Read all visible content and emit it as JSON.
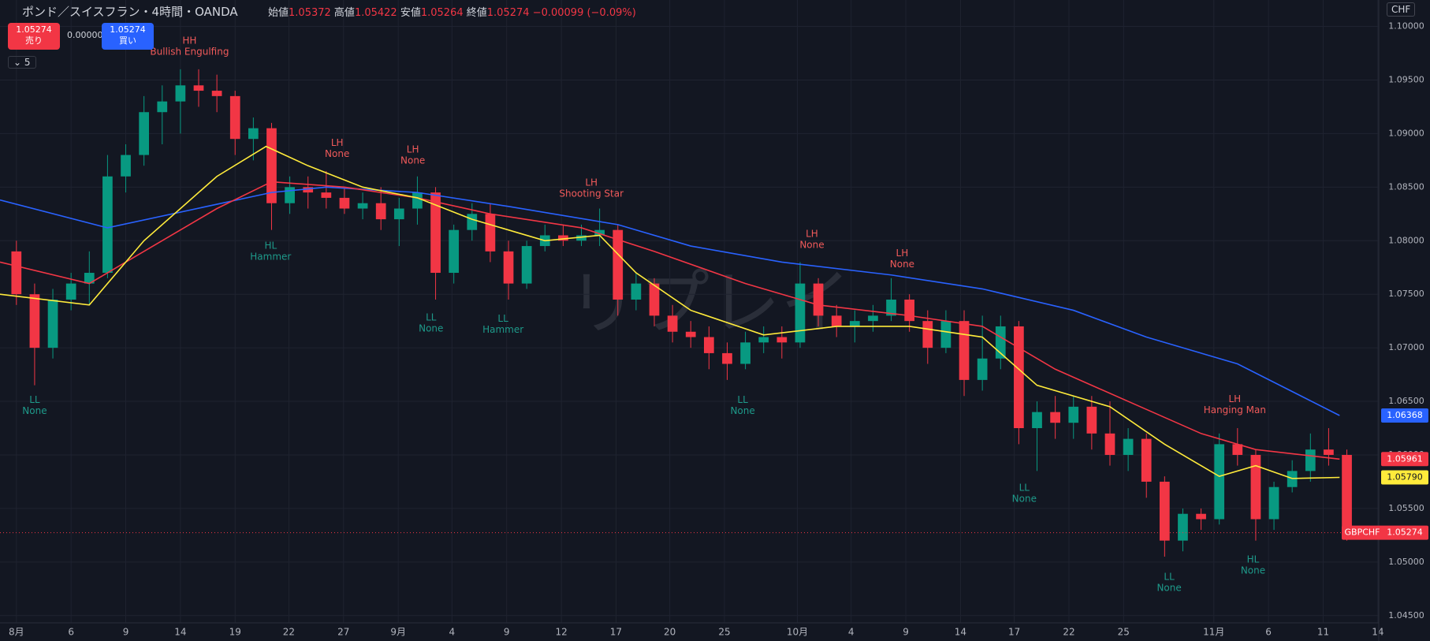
{
  "header": {
    "title": "ポンド／スイスフラン・4時間・OANDA",
    "open_label": "始値",
    "open": "1.05372",
    "high_label": "高値",
    "high": "1.05422",
    "low_label": "安値",
    "low": "1.05264",
    "close_label": "終値",
    "close": "1.05274",
    "change": "−0.00099 (−0.09%)",
    "sell_price": "1.05274",
    "sell": "売り",
    "spread": "0.00000",
    "buy_price": "1.05274",
    "buy": "買い",
    "indicators": "5",
    "currency": "CHF",
    "watermark": "リプレイ"
  },
  "chart_data": {
    "type": "candlestick",
    "symbol": "GBPCHF",
    "x": [
      0,
      1,
      2,
      3,
      4,
      5,
      6,
      7,
      8,
      9,
      10,
      11,
      12,
      13,
      14,
      15,
      16,
      17,
      18,
      19,
      20,
      21,
      22,
      23,
      24,
      25,
      26,
      27,
      28,
      29,
      30,
      31,
      32,
      33,
      34,
      35,
      36,
      37,
      38,
      39,
      40,
      41,
      42,
      43,
      44,
      45,
      46,
      47,
      48,
      49,
      50,
      51,
      52,
      53,
      54,
      55,
      56,
      57,
      58,
      59,
      60,
      61,
      62,
      63,
      64,
      65,
      66,
      67,
      68,
      69,
      70,
      71,
      72,
      73
    ],
    "open": [
      1.079,
      1.075,
      1.07,
      1.0745,
      1.076,
      1.077,
      1.086,
      1.088,
      1.092,
      1.093,
      1.0945,
      1.094,
      1.0935,
      1.0895,
      1.0905,
      1.0835,
      1.085,
      1.0845,
      1.084,
      1.083,
      1.0835,
      1.082,
      1.083,
      1.0845,
      1.077,
      1.081,
      1.0825,
      1.079,
      1.076,
      1.0795,
      1.0805,
      1.08,
      1.0805,
      1.081,
      1.0745,
      1.076,
      1.073,
      1.0715,
      1.071,
      1.0695,
      1.0685,
      1.0705,
      1.071,
      1.0705,
      1.076,
      1.073,
      1.072,
      1.0725,
      1.073,
      1.0745,
      1.0725,
      1.07,
      1.0725,
      1.067,
      1.069,
      1.072,
      1.0625,
      1.064,
      1.063,
      1.0645,
      1.062,
      1.06,
      1.0615,
      1.0575,
      1.052,
      1.0545,
      1.054,
      1.061,
      1.06,
      1.054,
      1.057,
      1.0585,
      1.0605,
      1.06
    ],
    "high": [
      1.08,
      1.076,
      1.0755,
      1.077,
      1.079,
      1.088,
      1.089,
      1.0935,
      1.0945,
      1.096,
      1.096,
      1.0955,
      1.094,
      1.0915,
      1.091,
      1.086,
      1.086,
      1.0865,
      1.085,
      1.0845,
      1.085,
      1.084,
      1.086,
      1.085,
      1.0815,
      1.0835,
      1.0835,
      1.08,
      1.08,
      1.0815,
      1.0815,
      1.0815,
      1.083,
      1.0815,
      1.077,
      1.0765,
      1.074,
      1.0725,
      1.072,
      1.0705,
      1.0715,
      1.072,
      1.072,
      1.078,
      1.0765,
      1.074,
      1.0735,
      1.074,
      1.0765,
      1.075,
      1.0735,
      1.0735,
      1.0735,
      1.073,
      1.073,
      1.0725,
      1.065,
      1.0655,
      1.0655,
      1.0655,
      1.065,
      1.0625,
      1.062,
      1.058,
      1.055,
      1.055,
      1.062,
      1.0625,
      1.0605,
      1.0575,
      1.0595,
      1.062,
      1.0625,
      1.0605
    ],
    "low": [
      1.074,
      1.0665,
      1.069,
      1.0735,
      1.074,
      1.0765,
      1.0845,
      1.087,
      1.089,
      1.09,
      1.0925,
      1.092,
      1.088,
      1.0875,
      1.081,
      1.0825,
      1.083,
      1.083,
      1.0825,
      1.082,
      1.081,
      1.0795,
      1.0815,
      1.0745,
      1.076,
      1.08,
      1.078,
      1.0745,
      1.0755,
      1.079,
      1.0795,
      1.0795,
      1.0795,
      1.073,
      1.0735,
      1.072,
      1.0705,
      1.07,
      1.068,
      1.067,
      1.068,
      1.0695,
      1.069,
      1.07,
      1.072,
      1.071,
      1.0705,
      1.0715,
      1.0725,
      1.0715,
      1.0685,
      1.0695,
      1.0655,
      1.066,
      1.068,
      1.061,
      1.0585,
      1.0615,
      1.0615,
      1.0605,
      1.059,
      1.0585,
      1.056,
      1.0505,
      1.051,
      1.053,
      1.0535,
      1.059,
      1.052,
      1.053,
      1.0565,
      1.0575,
      1.059,
      1.052
    ],
    "close": [
      1.075,
      1.07,
      1.0745,
      1.076,
      1.077,
      1.086,
      1.088,
      1.092,
      1.093,
      1.0945,
      1.094,
      1.0935,
      1.0895,
      1.0905,
      1.0835,
      1.085,
      1.0845,
      1.084,
      1.083,
      1.0835,
      1.082,
      1.083,
      1.0845,
      1.077,
      1.081,
      1.0825,
      1.079,
      1.076,
      1.0795,
      1.0805,
      1.08,
      1.0805,
      1.081,
      1.0745,
      1.076,
      1.073,
      1.0715,
      1.071,
      1.0695,
      1.0685,
      1.0705,
      1.071,
      1.0705,
      1.076,
      1.073,
      1.072,
      1.0725,
      1.073,
      1.0745,
      1.0725,
      1.07,
      1.0725,
      1.067,
      1.069,
      1.072,
      1.0625,
      1.064,
      1.063,
      1.0645,
      1.062,
      1.06,
      1.0615,
      1.0575,
      1.052,
      1.0545,
      1.054,
      1.061,
      1.06,
      1.054,
      1.057,
      1.0585,
      1.0605,
      1.06,
      1.05274
    ],
    "up_color": "#089981",
    "down_color": "#f23645",
    "last": {
      "value": 1.05274,
      "label": "1.05274"
    },
    "series": [
      {
        "color": "#2962ff",
        "x": [
          -0.9,
          5,
          14,
          17,
          22,
          27,
          33,
          37,
          42,
          48,
          53,
          58,
          62,
          67,
          72.6
        ],
        "values": [
          1.0838,
          1.0812,
          1.0845,
          1.085,
          1.0845,
          1.0832,
          1.0815,
          1.0795,
          1.078,
          1.0768,
          1.0755,
          1.0735,
          1.071,
          1.0685,
          1.06368
        ],
        "last": {
          "value": 1.06368,
          "label": "1.06368"
        }
      },
      {
        "color": "#f23645",
        "x": [
          -0.9,
          4,
          7,
          11,
          14,
          18,
          22,
          26,
          31,
          35,
          40,
          44,
          49,
          53,
          57,
          61,
          65,
          68,
          72.6
        ],
        "values": [
          1.078,
          1.076,
          1.079,
          1.083,
          1.0855,
          1.085,
          1.084,
          1.0825,
          1.0812,
          1.079,
          1.076,
          1.074,
          1.073,
          1.072,
          1.068,
          1.065,
          1.062,
          1.0605,
          1.05961
        ],
        "last": {
          "value": 1.05961,
          "label": "1.05961"
        }
      },
      {
        "color": "#ffeb3b",
        "x": [
          -0.9,
          4,
          7,
          11,
          13.7,
          16,
          19,
          22,
          25,
          29,
          32,
          34,
          37,
          41,
          45,
          49,
          53,
          56,
          60,
          63,
          66,
          68,
          70,
          72.6
        ],
        "values": [
          1.075,
          1.074,
          1.08,
          1.086,
          1.0888,
          1.087,
          1.085,
          1.084,
          1.082,
          1.08,
          1.0805,
          1.077,
          1.0735,
          1.0712,
          1.072,
          1.072,
          1.071,
          1.0665,
          1.0645,
          1.061,
          1.058,
          1.059,
          1.0578,
          1.0579
        ],
        "last": {
          "value": 1.0579,
          "label": "1.05790"
        }
      }
    ],
    "annotations": [
      {
        "x": 9.5,
        "y": 1.09864,
        "label": "HH",
        "pattern": "Bullish Engulfing",
        "color": "#f05a5a"
      },
      {
        "x": 13.95,
        "y": 1.0795,
        "label": "HL",
        "pattern": "Hammer",
        "color": "#1e9a8a"
      },
      {
        "x": 17.6,
        "y": 1.0891,
        "label": "LH",
        "pattern": "None",
        "color": "#f05a5a"
      },
      {
        "x": 21.75,
        "y": 1.0885,
        "label": "LH",
        "pattern": "None",
        "color": "#f05a5a"
      },
      {
        "x": 22.75,
        "y": 1.0728,
        "label": "LL",
        "pattern": "None",
        "color": "#1e9a8a"
      },
      {
        "x": 26.7,
        "y": 1.0727,
        "label": "LL",
        "pattern": "Hammer",
        "color": "#1e9a8a"
      },
      {
        "x": 31.55,
        "y": 1.0854,
        "label": "LH",
        "pattern": "Shooting Star",
        "color": "#f05a5a"
      },
      {
        "x": 1,
        "y": 1.0651,
        "label": "LL",
        "pattern": "None",
        "color": "#1e9a8a"
      },
      {
        "x": 39.85,
        "y": 1.0651,
        "label": "LL",
        "pattern": "None",
        "color": "#1e9a8a"
      },
      {
        "x": 43.65,
        "y": 1.0806,
        "label": "LH",
        "pattern": "None",
        "color": "#f05a5a"
      },
      {
        "x": 48.6,
        "y": 1.0788,
        "label": "LH",
        "pattern": "None",
        "color": "#f05a5a"
      },
      {
        "x": 55.3,
        "y": 1.0569,
        "label": "LL",
        "pattern": "None",
        "color": "#1e9a8a"
      },
      {
        "x": 63.25,
        "y": 1.0486,
        "label": "LL",
        "pattern": "None",
        "color": "#1e9a8a"
      },
      {
        "x": 67.85,
        "y": 1.0502,
        "label": "HL",
        "pattern": "None",
        "color": "#1e9a8a"
      },
      {
        "x": 66.85,
        "y": 1.0652,
        "label": "LH",
        "pattern": "Hanging Man",
        "color": "#f05a5a"
      }
    ],
    "xlim": [
      -0.9,
      74.75
    ],
    "ylim": [
      1.04432,
      1.10247
    ],
    "grid": true,
    "xticks": [
      {
        "value": 0,
        "label": "8月"
      },
      {
        "value": 3,
        "label": "6"
      },
      {
        "value": 6,
        "label": "9"
      },
      {
        "value": 9,
        "label": "14"
      },
      {
        "value": 12,
        "label": "19"
      },
      {
        "value": 14.95,
        "label": "22"
      },
      {
        "value": 17.95,
        "label": "27"
      },
      {
        "value": 20.95,
        "label": "9月"
      },
      {
        "value": 23.9,
        "label": "4"
      },
      {
        "value": 26.9,
        "label": "9"
      },
      {
        "value": 29.9,
        "label": "12"
      },
      {
        "value": 32.9,
        "label": "17"
      },
      {
        "value": 35.85,
        "label": "20"
      },
      {
        "value": 38.85,
        "label": "25"
      },
      {
        "value": 42.85,
        "label": "10月"
      },
      {
        "value": 45.8,
        "label": "4"
      },
      {
        "value": 48.8,
        "label": "9"
      },
      {
        "value": 51.8,
        "label": "14"
      },
      {
        "value": 54.75,
        "label": "17"
      },
      {
        "value": 57.75,
        "label": "22"
      },
      {
        "value": 60.75,
        "label": "25"
      },
      {
        "value": 65.7,
        "label": "11月"
      },
      {
        "value": 68.7,
        "label": "6"
      },
      {
        "value": 71.7,
        "label": "11"
      },
      {
        "value": 74.7,
        "label": "14"
      }
    ],
    "yticks": [
      {
        "value": 1.045,
        "label": "1.04500"
      },
      {
        "value": 1.05,
        "label": "1.05000"
      },
      {
        "value": 1.055,
        "label": "1.05500"
      },
      {
        "value": 1.06,
        "label": "1.06000"
      },
      {
        "value": 1.065,
        "label": "1.06500"
      },
      {
        "value": 1.07,
        "label": "1.07000"
      },
      {
        "value": 1.075,
        "label": "1.07500"
      },
      {
        "value": 1.08,
        "label": "1.08000"
      },
      {
        "value": 1.085,
        "label": "1.08500"
      },
      {
        "value": 1.09,
        "label": "1.09000"
      },
      {
        "value": 1.095,
        "label": "1.09500"
      },
      {
        "value": 1.1,
        "label": "1.10000"
      }
    ]
  }
}
